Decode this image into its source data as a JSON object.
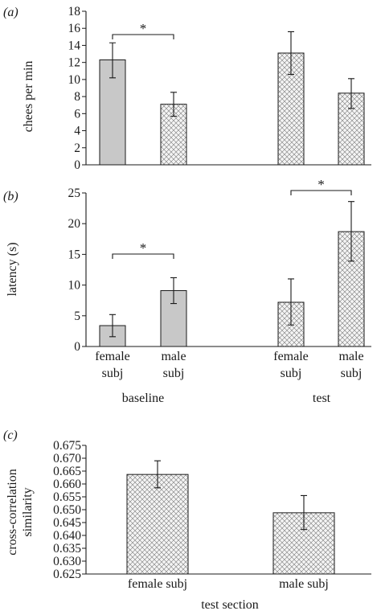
{
  "colors": {
    "solid_fill": "#c8c8c8",
    "hatch_bg": "#f4f4f4",
    "hatch_line": "#7a7a7a",
    "ink": "#1a1a1a"
  },
  "chart_data": [
    {
      "panel_label": "(a)",
      "type": "bar",
      "ylabel": "chees per min",
      "ylim": [
        0,
        18
      ],
      "yticks": [
        0,
        2,
        4,
        6,
        8,
        10,
        12,
        14,
        16,
        18
      ],
      "ytick_labels": [
        "0",
        "2",
        "4",
        "6",
        "8",
        "10",
        "12",
        "14",
        "16",
        "18"
      ],
      "bars": [
        {
          "group": "baseline",
          "category": "female subj",
          "value": 12.3,
          "err_low": 10.2,
          "err_high": 14.3,
          "fill": "solid"
        },
        {
          "group": "baseline",
          "category": "male subj",
          "value": 7.1,
          "err_low": 5.7,
          "err_high": 8.5,
          "fill": "hatch"
        },
        {
          "group": "test",
          "category": "female subj",
          "value": 13.1,
          "err_low": 10.6,
          "err_high": 15.6,
          "fill": "hatch"
        },
        {
          "group": "test",
          "category": "male subj",
          "value": 8.4,
          "err_low": 6.6,
          "err_high": 10.1,
          "fill": "hatch"
        }
      ],
      "significance": [
        {
          "from": 0,
          "to": 1,
          "label": "*"
        }
      ]
    },
    {
      "panel_label": "(b)",
      "type": "bar",
      "ylabel": "latency (s)",
      "ylim": [
        0,
        25
      ],
      "yticks": [
        0,
        5,
        10,
        15,
        20,
        25
      ],
      "ytick_labels": [
        "0",
        "5",
        "10",
        "15",
        "20",
        "25"
      ],
      "bars": [
        {
          "group": "baseline",
          "category": "female subj",
          "value": 3.4,
          "err_low": 1.6,
          "err_high": 5.2,
          "fill": "solid"
        },
        {
          "group": "baseline",
          "category": "male subj",
          "value": 9.1,
          "err_low": 7.0,
          "err_high": 11.2,
          "fill": "solid"
        },
        {
          "group": "test",
          "category": "female subj",
          "value": 7.2,
          "err_low": 3.5,
          "err_high": 11.0,
          "fill": "hatch"
        },
        {
          "group": "test",
          "category": "male subj",
          "value": 18.7,
          "err_low": 13.9,
          "err_high": 23.6,
          "fill": "hatch"
        }
      ],
      "category_labels": [
        {
          "line1": "female",
          "line2": "subj"
        },
        {
          "line1": "male",
          "line2": "subj"
        },
        {
          "line1": "female",
          "line2": "subj"
        },
        {
          "line1": "male",
          "line2": "subj"
        }
      ],
      "group_labels": [
        "baseline",
        "test"
      ],
      "significance": [
        {
          "from": 0,
          "to": 1,
          "label": "*"
        },
        {
          "from": 2,
          "to": 3,
          "label": "*"
        }
      ]
    },
    {
      "panel_label": "(c)",
      "type": "bar",
      "ylabel_line1": "cross-correlation",
      "ylabel_line2": "similarity",
      "xlabel": "test section",
      "ylim": [
        0.625,
        0.675
      ],
      "yticks": [
        0.625,
        0.63,
        0.635,
        0.64,
        0.645,
        0.65,
        0.655,
        0.66,
        0.665,
        0.67,
        0.675
      ],
      "ytick_labels": [
        "0.625",
        "0.630",
        "0.635",
        "0.640",
        "0.645",
        "0.650",
        "0.655",
        "0.660",
        "0.665",
        "0.670",
        "0.675"
      ],
      "categories": [
        "female subj",
        "male subj"
      ],
      "bars": [
        {
          "category": "female subj",
          "value": 0.6637,
          "err_low": 0.6585,
          "err_high": 0.669,
          "fill": "hatch"
        },
        {
          "category": "male subj",
          "value": 0.6488,
          "err_low": 0.6423,
          "err_high": 0.6555,
          "fill": "hatch"
        }
      ]
    }
  ]
}
